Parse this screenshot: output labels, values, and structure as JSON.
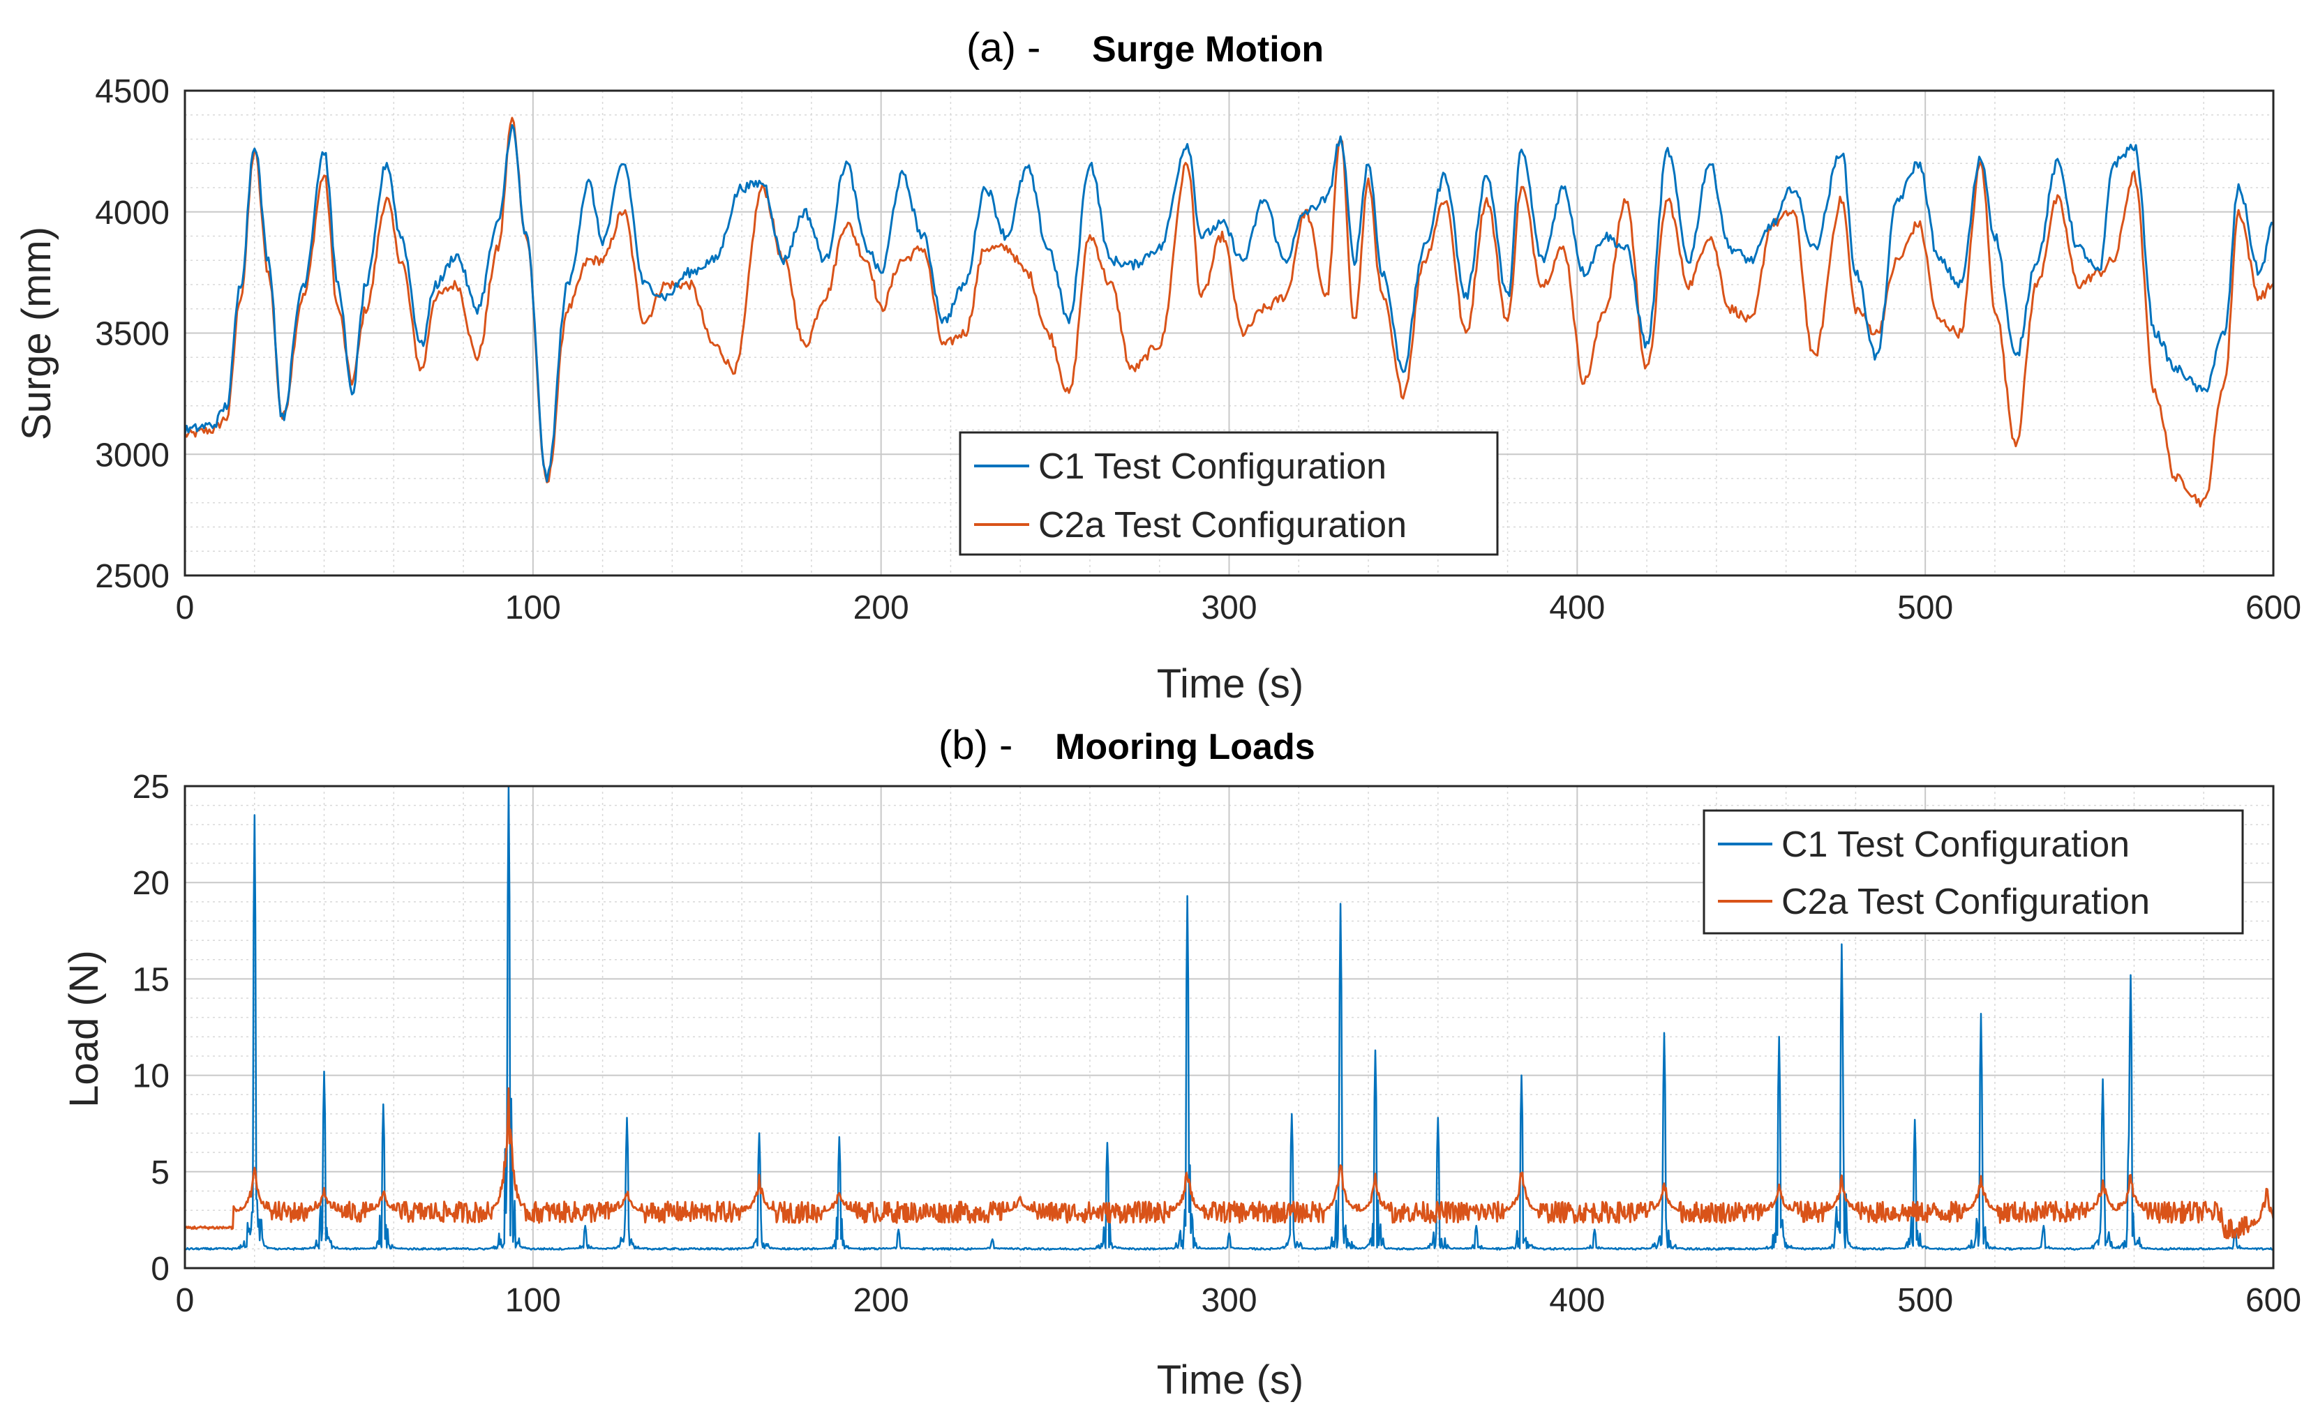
{
  "chart_data": [
    {
      "type": "line",
      "title_prefix": "(a) -",
      "title": "Surge Motion",
      "xlabel": "Time (s)",
      "ylabel": "Surge (mm)",
      "xlim": [
        0,
        600
      ],
      "ylim": [
        2500,
        4500
      ],
      "xticks": [
        0,
        100,
        200,
        300,
        400,
        500,
        600
      ],
      "yticks": [
        2500,
        3000,
        3500,
        4000,
        4500
      ],
      "grid": true,
      "minor_grid": true,
      "legend": "lower-center",
      "series": [
        {
          "name": "C1 Test Configuration",
          "color": "#0072BD",
          "x": [
            0,
            8,
            12,
            16,
            20,
            24,
            28,
            34,
            40,
            44,
            48,
            52,
            58,
            62,
            68,
            72,
            78,
            84,
            90,
            94,
            98,
            104,
            110,
            116,
            120,
            126,
            132,
            138,
            145,
            152,
            160,
            166,
            172,
            178,
            184,
            190,
            196,
            200,
            206,
            212,
            218,
            224,
            230,
            236,
            242,
            248,
            254,
            260,
            266,
            272,
            280,
            288,
            292,
            298,
            304,
            310,
            316,
            322,
            328,
            332,
            336,
            340,
            344,
            350,
            356,
            362,
            368,
            374,
            380,
            384,
            390,
            396,
            402,
            408,
            414,
            420,
            426,
            432,
            438,
            444,
            450,
            456,
            462,
            468,
            476,
            480,
            486,
            492,
            498,
            504,
            510,
            516,
            520,
            526,
            532,
            538,
            544,
            550,
            554,
            560,
            566,
            572,
            580,
            586,
            590,
            596,
            600
          ],
          "y": [
            3100,
            3120,
            3200,
            3700,
            4280,
            3800,
            3150,
            3700,
            4250,
            3700,
            3250,
            3700,
            4200,
            3900,
            3450,
            3700,
            3820,
            3600,
            3950,
            4350,
            3900,
            2900,
            3700,
            4120,
            3880,
            4200,
            3700,
            3650,
            3750,
            3800,
            4100,
            4120,
            3800,
            4000,
            3800,
            4200,
            3850,
            3750,
            4150,
            3900,
            3550,
            3700,
            4100,
            3900,
            4180,
            3850,
            3550,
            4200,
            3800,
            3780,
            3850,
            4280,
            3900,
            3950,
            3800,
            4050,
            3800,
            4000,
            4050,
            4300,
            3800,
            4200,
            3750,
            3350,
            3850,
            4150,
            3650,
            4150,
            3650,
            4250,
            3800,
            4100,
            3750,
            3900,
            3850,
            3450,
            4250,
            3800,
            4200,
            3850,
            3800,
            3950,
            4100,
            3850,
            4250,
            3750,
            3400,
            4050,
            4200,
            3800,
            3700,
            4220,
            3900,
            3400,
            3800,
            4200,
            3850,
            3750,
            4200,
            4270,
            3500,
            3350,
            3260,
            3500,
            4100,
            3750,
            3950
          ]
        },
        {
          "name": "C2a Test Configuration",
          "color": "#D95319",
          "x": [
            0,
            8,
            12,
            16,
            20,
            24,
            28,
            34,
            40,
            44,
            48,
            52,
            58,
            62,
            68,
            72,
            78,
            84,
            90,
            94,
            98,
            104,
            110,
            116,
            120,
            126,
            132,
            138,
            145,
            152,
            158,
            166,
            172,
            178,
            184,
            190,
            196,
            200,
            206,
            212,
            218,
            224,
            230,
            236,
            242,
            248,
            254,
            260,
            266,
            272,
            280,
            288,
            292,
            298,
            304,
            310,
            316,
            322,
            328,
            332,
            336,
            340,
            344,
            350,
            356,
            362,
            368,
            374,
            380,
            384,
            390,
            396,
            402,
            408,
            414,
            420,
            426,
            432,
            438,
            444,
            450,
            456,
            462,
            468,
            476,
            480,
            486,
            492,
            498,
            504,
            510,
            516,
            520,
            526,
            532,
            538,
            544,
            550,
            554,
            560,
            566,
            572,
            580,
            586,
            590,
            596,
            600
          ],
          "y": [
            3080,
            3100,
            3150,
            3650,
            4250,
            3750,
            3150,
            3650,
            4150,
            3600,
            3300,
            3600,
            4050,
            3800,
            3350,
            3650,
            3700,
            3400,
            3850,
            4380,
            3900,
            2880,
            3600,
            3800,
            3800,
            4000,
            3550,
            3700,
            3700,
            3450,
            3350,
            4100,
            3800,
            3450,
            3650,
            3950,
            3800,
            3600,
            3800,
            3850,
            3450,
            3500,
            3850,
            3850,
            3750,
            3500,
            3250,
            3900,
            3700,
            3350,
            3450,
            4200,
            3650,
            3900,
            3500,
            3600,
            3650,
            4000,
            3650,
            4300,
            3550,
            4120,
            3650,
            3250,
            3800,
            4050,
            3500,
            4050,
            3550,
            4100,
            3700,
            3850,
            3300,
            3600,
            4050,
            3350,
            4050,
            3700,
            3900,
            3600,
            3550,
            3950,
            4000,
            3400,
            4050,
            3600,
            3500,
            3800,
            3950,
            3550,
            3500,
            4200,
            3600,
            3050,
            3700,
            4050,
            3700,
            3750,
            3800,
            4150,
            3250,
            2900,
            2800,
            3300,
            4000,
            3650,
            3700
          ]
        }
      ]
    },
    {
      "type": "line",
      "title_prefix": "(b) -",
      "title": "Mooring Loads",
      "xlabel": "Time (s)",
      "ylabel": "Load (N)",
      "xlim": [
        0,
        600
      ],
      "ylim": [
        0,
        25
      ],
      "xticks": [
        0,
        100,
        200,
        300,
        400,
        500,
        600
      ],
      "yticks": [
        0,
        5,
        10,
        15,
        20,
        25
      ],
      "grid": true,
      "minor_grid": true,
      "legend": "top-right",
      "series": [
        {
          "name": "C1 Test Configuration",
          "color": "#0072BD",
          "baseline": 1,
          "peaks": [
            [
              20,
              23.5
            ],
            [
              40,
              10.2
            ],
            [
              57,
              8.5
            ],
            [
              93,
              25
            ],
            [
              115,
              2.2
            ],
            [
              127,
              7.8
            ],
            [
              165,
              7
            ],
            [
              188,
              6.8
            ],
            [
              205,
              2
            ],
            [
              232,
              1.5
            ],
            [
              265,
              6.5
            ],
            [
              288,
              19.3
            ],
            [
              300,
              1.8
            ],
            [
              318,
              8
            ],
            [
              332,
              18.9
            ],
            [
              342,
              11.3
            ],
            [
              360,
              7.8
            ],
            [
              371,
              2.2
            ],
            [
              384,
              10
            ],
            [
              405,
              2
            ],
            [
              425,
              12.2
            ],
            [
              458,
              12
            ],
            [
              476,
              16.8
            ],
            [
              497,
              7.7
            ],
            [
              516,
              13.2
            ],
            [
              534,
              2.2
            ],
            [
              551,
              9.8
            ],
            [
              559,
              15.2
            ],
            [
              589,
              2
            ]
          ]
        },
        {
          "name": "C2a Test Configuration",
          "color": "#D95319",
          "baseline": 2.1,
          "noise_base": 2.9,
          "peaks": [
            [
              20,
              5.5
            ],
            [
              40,
              4.3
            ],
            [
              57,
              4.3
            ],
            [
              93,
              9.8
            ],
            [
              127,
              4.2
            ],
            [
              165,
              5
            ],
            [
              188,
              4.2
            ],
            [
              240,
              3.8
            ],
            [
              288,
              5.5
            ],
            [
              332,
              6
            ],
            [
              342,
              5
            ],
            [
              384,
              5.5
            ],
            [
              425,
              4.8
            ],
            [
              458,
              4.5
            ],
            [
              476,
              5
            ],
            [
              516,
              5.3
            ],
            [
              551,
              5
            ],
            [
              559,
              5.2
            ],
            [
              598,
              4.6
            ]
          ]
        }
      ]
    }
  ]
}
